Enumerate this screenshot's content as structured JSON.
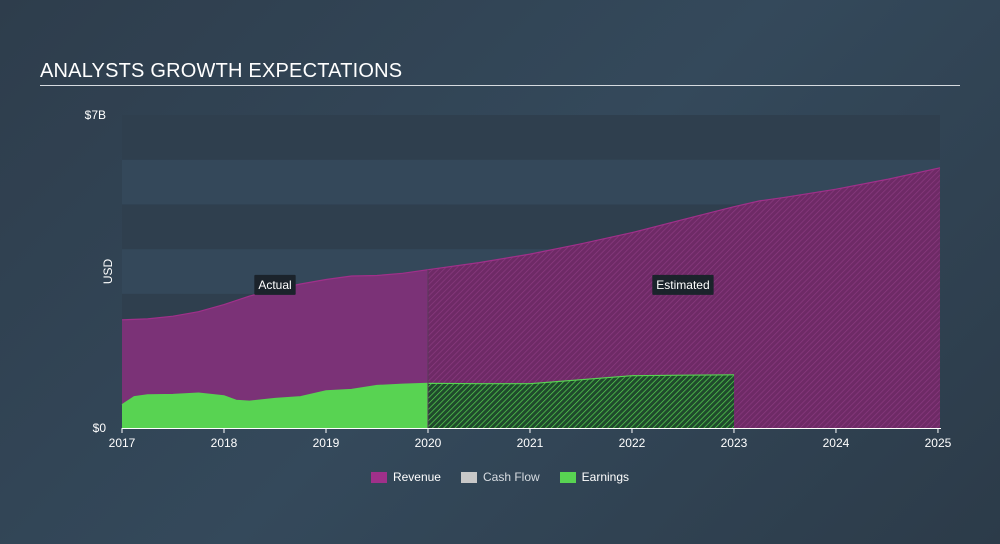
{
  "header": {
    "title": "ANALYSTS GROWTH EXPECTATIONS"
  },
  "chart_data": {
    "type": "area",
    "title": "ANALYSTS GROWTH EXPECTATIONS",
    "ylabel": "USD",
    "ylim": [
      0,
      7
    ],
    "y_unit": "billions USD",
    "ytick_labels": [
      {
        "value": 7,
        "label": "$7B"
      },
      {
        "value": 0,
        "label": "$0"
      }
    ],
    "xlim": [
      2017,
      2025.02
    ],
    "xticks": [
      2017,
      2018,
      2019,
      2020,
      2021,
      2022,
      2023,
      2024,
      2025
    ],
    "actual_until": 2020,
    "annotations": [
      {
        "label": "Actual",
        "x": 2018.5,
        "y": 3.2
      },
      {
        "label": "Estimated",
        "x": 2022.5,
        "y": 3.2
      }
    ],
    "series": [
      {
        "name": "Revenue",
        "color": "#a0308a",
        "points": [
          [
            2017.0,
            2.42
          ],
          [
            2017.25,
            2.44
          ],
          [
            2017.5,
            2.5
          ],
          [
            2017.75,
            2.6
          ],
          [
            2018.0,
            2.76
          ],
          [
            2018.25,
            2.95
          ],
          [
            2018.5,
            3.1
          ],
          [
            2018.75,
            3.22
          ],
          [
            2019.0,
            3.32
          ],
          [
            2019.25,
            3.4
          ],
          [
            2019.5,
            3.41
          ],
          [
            2019.75,
            3.46
          ],
          [
            2020.0,
            3.54
          ],
          [
            2020.5,
            3.7
          ],
          [
            2021.0,
            3.89
          ],
          [
            2021.5,
            4.12
          ],
          [
            2022.0,
            4.37
          ],
          [
            2022.5,
            4.66
          ],
          [
            2023.0,
            4.95
          ],
          [
            2023.25,
            5.08
          ],
          [
            2023.5,
            5.16
          ],
          [
            2024.0,
            5.34
          ],
          [
            2024.5,
            5.56
          ],
          [
            2025.02,
            5.82
          ]
        ]
      },
      {
        "name": "Cash Flow",
        "color": "#c8c8c8",
        "points": []
      },
      {
        "name": "Earnings",
        "color": "#58d352",
        "points": [
          [
            2017.0,
            0.52
          ],
          [
            2017.12,
            0.7
          ],
          [
            2017.25,
            0.74
          ],
          [
            2017.5,
            0.75
          ],
          [
            2017.75,
            0.78
          ],
          [
            2018.0,
            0.72
          ],
          [
            2018.12,
            0.62
          ],
          [
            2018.25,
            0.6
          ],
          [
            2018.5,
            0.66
          ],
          [
            2018.75,
            0.7
          ],
          [
            2019.0,
            0.83
          ],
          [
            2019.25,
            0.86
          ],
          [
            2019.5,
            0.95
          ],
          [
            2019.75,
            0.98
          ],
          [
            2020.0,
            1.0
          ],
          [
            2020.5,
            0.99
          ],
          [
            2021.0,
            0.99
          ],
          [
            2021.5,
            1.08
          ],
          [
            2022.0,
            1.17
          ],
          [
            2022.5,
            1.18
          ],
          [
            2023.0,
            1.19
          ]
        ]
      }
    ]
  }
}
